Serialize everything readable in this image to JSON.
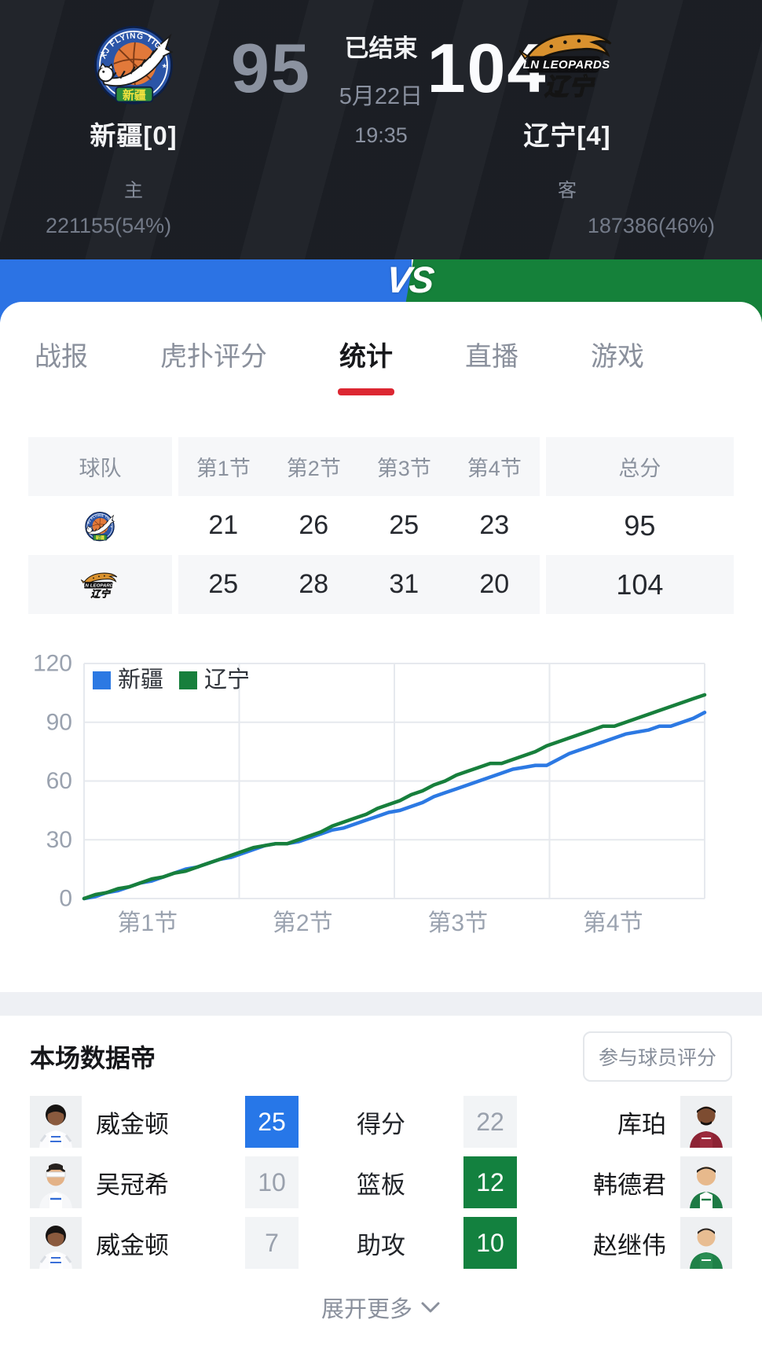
{
  "scoreboard": {
    "status": "已结束",
    "date": "5月22日",
    "time": "19:35",
    "home": {
      "name": "新疆[0]",
      "role": "主",
      "score": "95",
      "votes": "221155(54%)",
      "logo": "xj-flying-tigers-logo"
    },
    "away": {
      "name": "辽宁[4]",
      "role": "客",
      "score": "104",
      "votes": "187386(46%)",
      "logo": "ln-leopards-logo"
    }
  },
  "vs_bar": {
    "label": "VS",
    "home_color": "#2c73e4",
    "away_color": "#15813a",
    "home_ratio": "54%"
  },
  "tabs": {
    "items": [
      {
        "label": "战报"
      },
      {
        "label": "虎扑评分"
      },
      {
        "label": "统计"
      },
      {
        "label": "直播"
      },
      {
        "label": "游戏"
      }
    ],
    "active": "统计",
    "active_index": 2,
    "underline_color": "#dc2732"
  },
  "quarters_table": {
    "headers": {
      "team": "球队",
      "q1": "第1节",
      "q2": "第2节",
      "q3": "第3节",
      "q4": "第4节",
      "total": "总分"
    },
    "rows": [
      {
        "team": "新疆",
        "q1": "21",
        "q2": "26",
        "q3": "25",
        "q4": "23",
        "total": "95"
      },
      {
        "team": "辽宁",
        "q1": "25",
        "q2": "28",
        "q3": "31",
        "q4": "20",
        "total": "104"
      }
    ]
  },
  "chart_data": {
    "type": "line",
    "title": "",
    "xlabel": "",
    "ylabel": "",
    "x_tick_labels": [
      "第1节",
      "第2节",
      "第3节",
      "第4节"
    ],
    "ylim": [
      0,
      120
    ],
    "yticks": [
      0,
      30,
      60,
      90,
      120
    ],
    "grid": true,
    "legend_position": "top-left",
    "note": "cumulative score progression over the 4 quarters, even event spacing",
    "series": [
      {
        "name": "新疆",
        "color": "#2c79e3",
        "quarter_totals": [
          21,
          26,
          25,
          23
        ],
        "final": 95,
        "values": [
          0,
          1,
          3,
          4,
          6,
          8,
          9,
          11,
          13,
          15,
          16,
          18,
          20,
          21,
          23,
          25,
          27,
          28,
          28,
          29,
          31,
          33,
          35,
          36,
          38,
          40,
          42,
          44,
          45,
          47,
          49,
          52,
          54,
          56,
          58,
          60,
          62,
          64,
          66,
          67,
          68,
          68,
          71,
          74,
          76,
          78,
          80,
          82,
          84,
          85,
          86,
          88,
          88,
          90,
          92,
          95
        ]
      },
      {
        "name": "辽宁",
        "color": "#177f3c",
        "quarter_totals": [
          25,
          28,
          31,
          20
        ],
        "final": 104,
        "values": [
          0,
          2,
          3,
          5,
          6,
          8,
          10,
          11,
          13,
          14,
          16,
          18,
          20,
          22,
          24,
          26,
          27,
          28,
          28,
          30,
          32,
          34,
          37,
          39,
          41,
          43,
          46,
          48,
          50,
          53,
          55,
          58,
          60,
          63,
          65,
          67,
          69,
          69,
          71,
          73,
          75,
          78,
          80,
          82,
          84,
          86,
          88,
          88,
          90,
          92,
          94,
          96,
          98,
          100,
          102,
          104
        ]
      }
    ]
  },
  "stats_section": {
    "title": "本场数据帝",
    "rate_button": "参与球员评分",
    "rows": [
      {
        "stat": "得分",
        "left": {
          "name": "威金顿",
          "value": "25",
          "win": true
        },
        "right": {
          "name": "库珀",
          "value": "22",
          "win": false
        }
      },
      {
        "stat": "篮板",
        "left": {
          "name": "吴冠希",
          "value": "10",
          "win": false
        },
        "right": {
          "name": "韩德君",
          "value": "12",
          "win": true
        }
      },
      {
        "stat": "助攻",
        "left": {
          "name": "威金顿",
          "value": "7",
          "win": false
        },
        "right": {
          "name": "赵继伟",
          "value": "10",
          "win": true
        }
      }
    ],
    "expand_label": "展开更多"
  }
}
